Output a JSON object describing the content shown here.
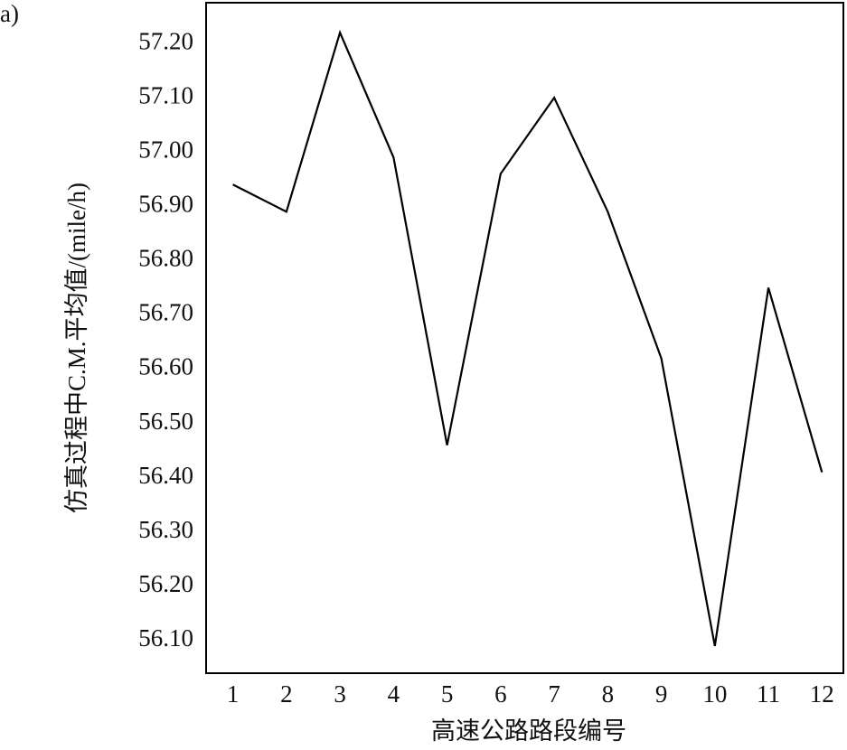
{
  "chart_data": {
    "type": "line",
    "annotation": "a)",
    "xlabel": "高速公路路段编号",
    "ylabel": "仿真过程中C.M.平均值/(mile/h)",
    "x": [
      1,
      2,
      3,
      4,
      5,
      6,
      7,
      8,
      9,
      10,
      11,
      12
    ],
    "series": [
      {
        "color": "#000000",
        "values": [
          56.94,
          56.89,
          57.22,
          56.99,
          56.46,
          56.96,
          57.1,
          56.89,
          56.62,
          56.09,
          56.75,
          56.41
        ]
      }
    ],
    "xlim": [
      0.5,
      12.4
    ],
    "xticks": [
      1,
      2,
      3,
      4,
      5,
      6,
      7,
      8,
      9,
      10,
      11,
      12
    ],
    "ylim": [
      56.04,
      57.275
    ],
    "yticks": [
      {
        "value": 56.1,
        "label": "56.10"
      },
      {
        "value": 56.2,
        "label": "56.20"
      },
      {
        "value": 56.3,
        "label": "56.30"
      },
      {
        "value": 56.4,
        "label": "56.40"
      },
      {
        "value": 56.5,
        "label": "56.50"
      },
      {
        "value": 56.6,
        "label": "56.60"
      },
      {
        "value": 56.7,
        "label": "56.70"
      },
      {
        "value": 56.8,
        "label": "56.80"
      },
      {
        "value": 56.9,
        "label": "56.90"
      },
      {
        "value": 57.0,
        "label": "57.00"
      },
      {
        "value": 57.1,
        "label": "57.10"
      },
      {
        "value": 57.2,
        "label": "57.20"
      }
    ],
    "grid": false
  }
}
